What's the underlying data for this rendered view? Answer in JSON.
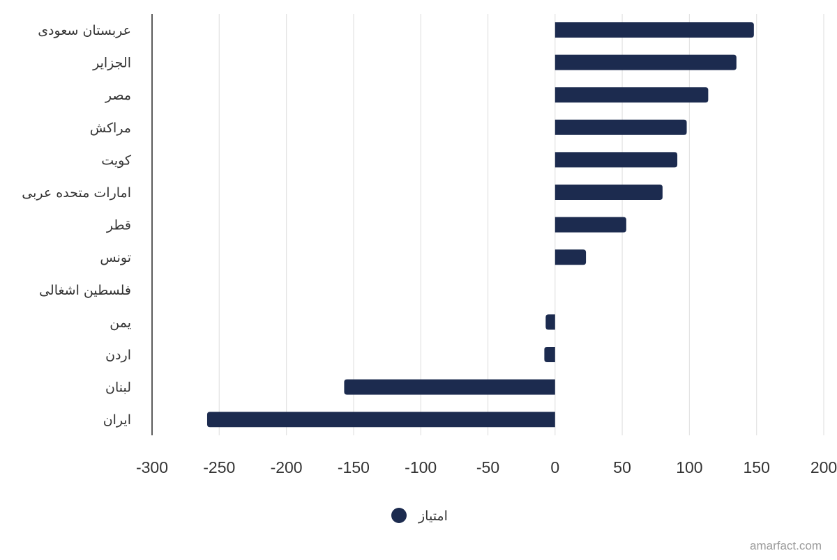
{
  "chart_data": {
    "type": "bar",
    "orientation": "horizontal",
    "categories": [
      "عربستان سعودی",
      "الجزایر",
      "مصر",
      "مراکش",
      "کویت",
      "امارات متحده عربی",
      "قطر",
      "تونس",
      "فلسطین اشغالی",
      "یمن",
      "اردن",
      "لبنان",
      "ایران"
    ],
    "series": [
      {
        "name": "امتیاز",
        "color": "#1c2b4f",
        "values": [
          148,
          135,
          114,
          98,
          91,
          80,
          53,
          23,
          0,
          -7,
          -8,
          -157,
          -259
        ]
      }
    ],
    "xlim": [
      -300,
      200
    ],
    "xticks": [
      -300,
      -250,
      -200,
      -150,
      -100,
      -50,
      0,
      50,
      100,
      150,
      200
    ],
    "xtick_labels": [
      "-300",
      "-250",
      "-200",
      "-150",
      "-100",
      "-50",
      "0",
      "50",
      "100",
      "150",
      "200"
    ],
    "grid": "vertical",
    "legend": "bottom-center",
    "title": "",
    "xlabel": "",
    "ylabel": ""
  },
  "watermark": "amarfact.com"
}
